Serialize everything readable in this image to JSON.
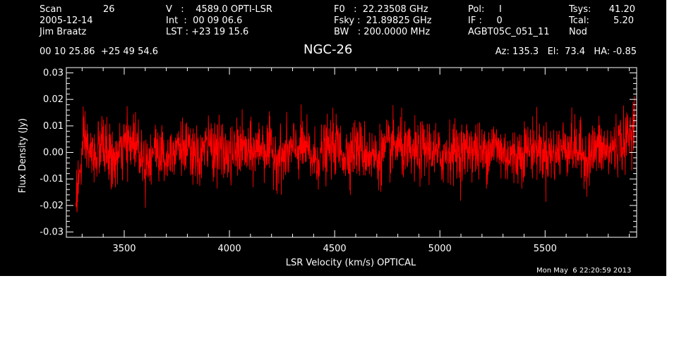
{
  "header": {
    "scan_label": "Scan",
    "scan_number": "26",
    "date": "2005-12-14",
    "observer": "Jim Braatz",
    "velocity": "V   :    4589.0 OPTI-LSR",
    "integration": "Int  :  00 09 06.6",
    "lst": "LST : +23 19 15.6",
    "f0": "F0   :  22.23508 GHz",
    "fsky": "Fsky :  21.89825 GHz",
    "bandwidth": "BW   : 200.0000 MHz",
    "pol": "Pol:     I",
    "if": "IF :     0",
    "project": "AGBT05C_051_11",
    "tsys_label": "Tsys:",
    "tsys_value": "41.20",
    "tcal_label": "Tcal:",
    "tcal_value": "5.20",
    "mode": "Nod",
    "coordinates": "00 10 25.86  +25 49 54.6",
    "source": "NGC-26",
    "az_el_ha": "Az: 135.3   El:  73.4   HA: -0.85"
  },
  "timestamp": "Mon May  6 22:20:59 2013",
  "colors": {
    "background": "#000000",
    "foreground": "#ffffff",
    "spectrum": "#ff0000"
  },
  "chart_data": {
    "type": "line",
    "title": "NGC-26",
    "xlabel": "LSR Velocity (km/s) OPTICAL",
    "ylabel": "Flux Density (Jy)",
    "xlim": [
      3225,
      5935
    ],
    "ylim": [
      -0.032,
      0.032
    ],
    "xticks": [
      3500,
      4000,
      4500,
      5000,
      5500
    ],
    "yticks": [
      -0.03,
      -0.02,
      -0.01,
      0.0,
      0.01,
      0.02,
      0.03
    ],
    "xtick_labels": [
      "3500",
      "4000",
      "4500",
      "5000",
      "5500"
    ],
    "ytick_labels": [
      "-0.03",
      "-0.02",
      "-0.01",
      "0.00",
      "0.01",
      "0.02",
      "0.03"
    ],
    "series": [
      {
        "color": "#ff0000",
        "x": [
          3270,
          3290,
          3310,
          3330,
          3350,
          3400,
          3450,
          3500,
          3550,
          3600,
          3650,
          3700,
          3750,
          3800,
          3850,
          3900,
          3950,
          4000,
          4050,
          4100,
          4150,
          4200,
          4250,
          4300,
          4350,
          4400,
          4450,
          4500,
          4550,
          4600,
          4650,
          4700,
          4750,
          4800,
          4850,
          4900,
          4950,
          5000,
          5050,
          5100,
          5150,
          5200,
          5250,
          5300,
          5350,
          5400,
          5450,
          5500,
          5550,
          5600,
          5650,
          5700,
          5750,
          5800,
          5850,
          5880,
          5900,
          5915,
          5925
        ],
        "values": [
          -0.017,
          -0.008,
          0.004,
          0.001,
          -0.002,
          0.003,
          -0.004,
          0.002,
          0.005,
          -0.003,
          0.001,
          -0.002,
          0.004,
          0.0,
          -0.003,
          0.003,
          0.001,
          -0.002,
          0.002,
          -0.001,
          0.003,
          0.0,
          -0.002,
          0.001,
          0.002,
          -0.003,
          0.0,
          0.003,
          -0.001,
          0.002,
          0.0,
          -0.002,
          0.001,
          0.003,
          -0.001,
          0.0,
          0.002,
          -0.002,
          0.001,
          0.0,
          0.002,
          -0.001,
          0.003,
          0.0,
          -0.002,
          0.001,
          0.002,
          0.0,
          -0.001,
          0.003,
          0.001,
          -0.002,
          0.002,
          0.0,
          0.004,
          0.003,
          0.007,
          0.009,
          0.012
        ],
        "noise_rms": 0.0055
      }
    ]
  }
}
